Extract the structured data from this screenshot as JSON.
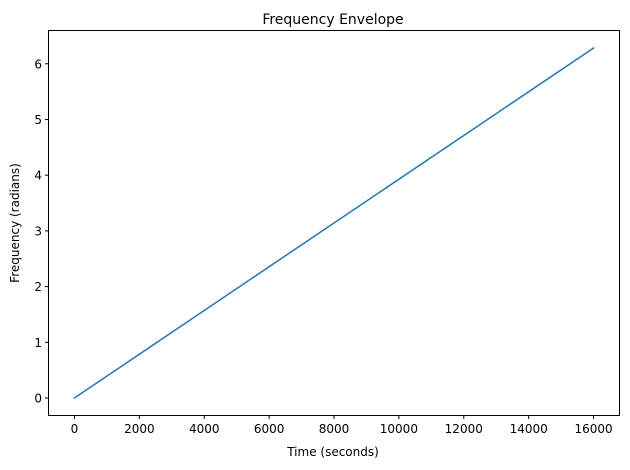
{
  "chart_data": {
    "type": "line",
    "title": "Frequency Envelope",
    "xlabel": "Time (seconds)",
    "ylabel": "Frequency (radians)",
    "xlim": [
      -800,
      16800
    ],
    "ylim": [
      -0.3142,
      6.5974
    ],
    "xticks": [
      0,
      2000,
      4000,
      6000,
      8000,
      10000,
      12000,
      14000,
      16000
    ],
    "yticks": [
      0,
      1,
      2,
      3,
      4,
      5,
      6
    ],
    "grid": false,
    "series": [
      {
        "color": "#1f77b4",
        "x": [
          0,
          16000
        ],
        "y": [
          0,
          6.2832
        ]
      }
    ]
  }
}
